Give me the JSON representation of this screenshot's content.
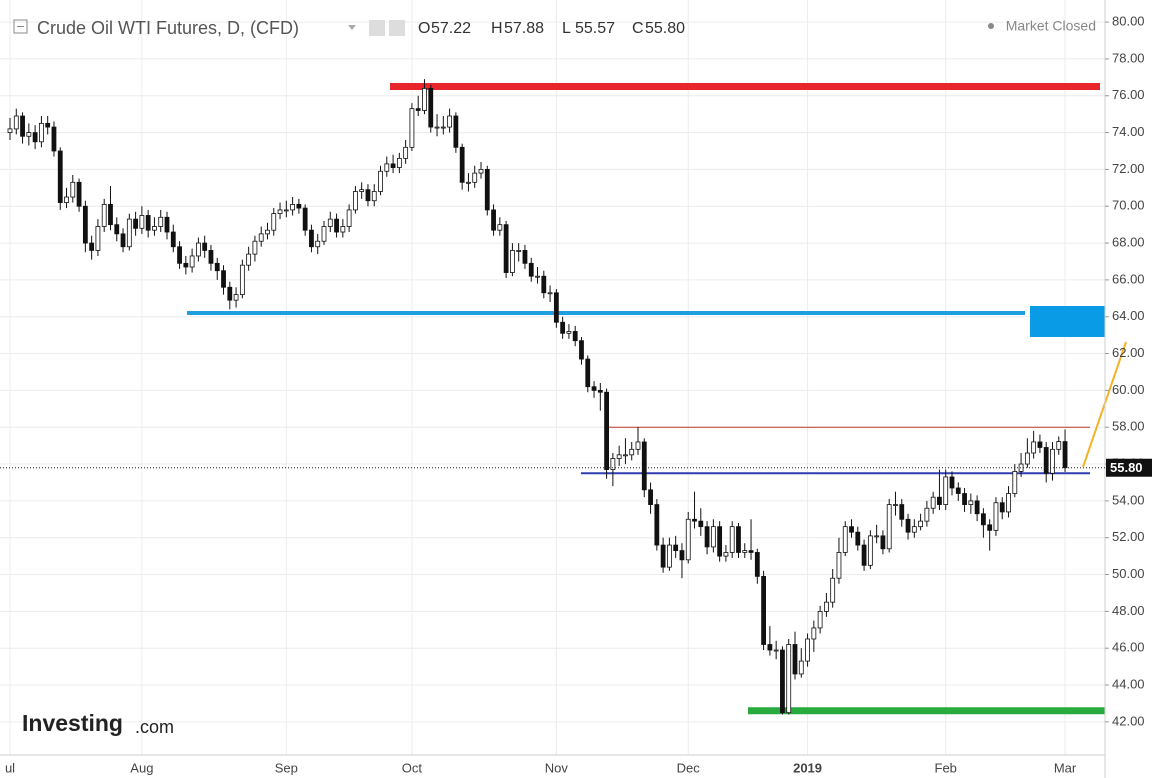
{
  "chart_data": {
    "type": "candlestick",
    "title": "Crude Oil WTI Futures, D, (CFD)",
    "ohlc_labels": [
      "O",
      "H",
      "L",
      "C"
    ],
    "ohlc_values": [
      "57.22",
      "57.88",
      "55.57",
      "55.80"
    ],
    "status": "Market Closed",
    "brand": "Investing",
    "brand_suffix": ".com",
    "up_color": "#ffffff",
    "down_color": "#111111",
    "grid": true,
    "ylim": [
      40.2,
      81.2
    ],
    "yticks": [
      {
        "value": 42,
        "label": "42.00"
      },
      {
        "value": 44,
        "label": "44.00"
      },
      {
        "value": 46,
        "label": "46.00"
      },
      {
        "value": 48,
        "label": "48.00"
      },
      {
        "value": 50,
        "label": "50.00"
      },
      {
        "value": 52,
        "label": "52.00"
      },
      {
        "value": 54,
        "label": "54.00"
      },
      {
        "value": 56,
        "label": "56.00"
      },
      {
        "value": 58,
        "label": "58.00"
      },
      {
        "value": 60,
        "label": "60.00"
      },
      {
        "value": 62,
        "label": "62.00"
      },
      {
        "value": 64,
        "label": "64.00"
      },
      {
        "value": 66,
        "label": "66.00"
      },
      {
        "value": 68,
        "label": "68.00"
      },
      {
        "value": 70,
        "label": "70.00"
      },
      {
        "value": 72,
        "label": "72.00"
      },
      {
        "value": 74,
        "label": "74.00"
      },
      {
        "value": 76,
        "label": "76.00"
      },
      {
        "value": 78,
        "label": "78.00"
      },
      {
        "value": 80,
        "label": "80.00"
      }
    ],
    "xticks": [
      {
        "value": 0,
        "label": "ul"
      },
      {
        "value": 21,
        "label": "Aug"
      },
      {
        "value": 44,
        "label": "Sep"
      },
      {
        "value": 64,
        "label": "Oct"
      },
      {
        "value": 87,
        "label": "Nov"
      },
      {
        "value": 108,
        "label": "Dec"
      },
      {
        "value": 127,
        "label": "2019"
      },
      {
        "value": 149,
        "label": "Feb"
      },
      {
        "value": 168,
        "label": "Mar"
      }
    ],
    "last_price": {
      "value": 55.8,
      "label": "55.80"
    },
    "levels": [
      {
        "value": 76.5,
        "color": "#e8262b"
      },
      {
        "value": 64.2,
        "color": "#1e9fe0"
      },
      {
        "value": 58.0,
        "color": "#c0392b"
      },
      {
        "value": 55.5,
        "color": "#2f3fb0"
      },
      {
        "value": 42.6,
        "color": "#27ab3f"
      }
    ],
    "open": [
      74.0,
      74.2,
      74.9,
      73.8,
      74.0,
      73.5,
      74.5,
      74.3,
      73.0,
      70.2,
      70.5,
      71.3,
      70.0,
      68.0,
      67.6,
      68.9,
      70.1,
      69.0,
      68.5,
      67.8,
      69.3,
      68.8,
      69.5,
      68.7,
      68.9,
      69.4,
      68.6,
      67.8,
      66.9,
      66.7,
      67.3,
      68.0,
      67.6,
      66.9,
      66.5,
      65.6,
      64.9,
      65.2,
      66.8,
      67.4,
      68.1,
      68.5,
      68.7,
      69.6,
      69.8,
      69.8,
      70.1,
      69.9,
      68.7,
      67.8,
      68.1,
      68.9,
      69.3,
      68.6,
      68.9,
      69.8,
      70.8,
      70.9,
      70.3,
      70.8,
      71.9,
      72.3,
      72.1,
      72.6,
      73.2,
      75.3,
      75.2,
      76.4,
      74.3,
      74.3,
      74.3,
      74.9,
      73.2,
      71.3,
      71.3,
      71.8,
      72.0,
      69.8,
      68.7,
      69.0,
      66.4,
      67.6,
      67.6,
      66.9,
      66.2,
      66.2,
      65.3,
      65.3,
      63.7,
      63.1,
      63.2,
      62.7,
      61.7,
      60.2,
      60.0,
      59.9,
      55.7,
      56.3,
      56.5,
      56.5,
      56.8,
      57.2,
      54.6,
      53.8,
      51.6,
      50.4,
      51.6,
      51.3,
      50.8,
      53.0,
      52.9,
      52.6,
      51.5,
      52.6,
      51.0,
      51.2,
      52.6,
      51.2,
      51.3,
      51.2,
      49.9,
      46.2,
      45.9,
      45.9,
      42.5,
      46.2,
      44.6,
      45.3,
      46.5,
      47.1,
      48.0,
      48.5,
      49.8,
      51.2,
      52.6,
      52.3,
      51.6,
      50.5,
      52.1,
      52.1,
      51.4,
      53.8,
      53.8,
      53.0,
      52.3,
      52.6,
      52.9,
      53.6,
      54.2,
      53.8,
      55.3,
      54.7,
      54.4,
      53.8,
      54.0,
      53.3,
      52.7,
      52.4,
      53.9,
      53.4,
      54.4,
      55.6,
      56.0,
      56.6,
      57.2,
      56.9,
      55.5,
      56.8,
      57.22
    ],
    "high": [
      74.8,
      75.3,
      75.1,
      74.5,
      74.4,
      74.9,
      74.9,
      74.6,
      73.2,
      71.0,
      71.7,
      71.5,
      70.3,
      68.4,
      69.3,
      70.4,
      71.1,
      69.4,
      68.8,
      69.6,
      69.7,
      70.0,
      69.8,
      69.4,
      69.8,
      69.7,
      69.0,
      68.1,
      67.3,
      67.7,
      68.3,
      68.4,
      67.9,
      67.2,
      66.8,
      65.9,
      65.6,
      67.1,
      67.8,
      68.4,
      68.9,
      69.1,
      69.9,
      70.2,
      70.3,
      70.5,
      70.4,
      70.1,
      69.0,
      68.5,
      69.2,
      69.7,
      69.6,
      69.3,
      70.1,
      71.1,
      71.3,
      71.2,
      71.2,
      72.2,
      72.7,
      72.8,
      72.9,
      73.6,
      75.6,
      76.0,
      76.9,
      76.6,
      75.0,
      74.9,
      75.3,
      75.1,
      73.4,
      71.8,
      72.2,
      72.4,
      72.2,
      70.1,
      69.4,
      69.2,
      68.0,
      68.0,
      67.9,
      67.2,
      66.7,
      66.5,
      65.7,
      65.5,
      64.0,
      63.6,
      63.5,
      62.9,
      61.9,
      60.5,
      60.4,
      60.1,
      56.6,
      57.0,
      57.4,
      57.2,
      58.0,
      57.4,
      55.0,
      54.1,
      52.0,
      52.0,
      52.1,
      51.7,
      53.4,
      54.5,
      53.6,
      52.9,
      53.0,
      52.9,
      51.6,
      52.9,
      52.8,
      51.7,
      53.0,
      51.4,
      50.2,
      47.2,
      46.4,
      46.1,
      46.5,
      46.9,
      46.0,
      46.8,
      47.5,
      48.3,
      49.0,
      50.3,
      52.0,
      52.9,
      53.0,
      52.6,
      51.9,
      52.4,
      52.7,
      52.4,
      54.1,
      54.5,
      54.1,
      53.3,
      53.0,
      53.3,
      54.0,
      54.5,
      55.7,
      55.7,
      55.6,
      55.0,
      54.7,
      54.4,
      54.3,
      53.6,
      53.0,
      54.2,
      54.2,
      54.8,
      56.0,
      56.6,
      57.4,
      57.8,
      57.6,
      57.2,
      57.2,
      57.5,
      57.88
    ],
    "low": [
      73.6,
      73.9,
      73.4,
      73.3,
      73.1,
      73.2,
      73.9,
      72.7,
      69.8,
      69.9,
      70.2,
      69.7,
      67.5,
      67.1,
      67.3,
      68.6,
      68.7,
      68.1,
      67.5,
      67.6,
      68.4,
      68.5,
      68.3,
      68.4,
      68.6,
      68.2,
      67.5,
      66.6,
      66.3,
      66.4,
      67.0,
      67.2,
      66.5,
      66.0,
      65.2,
      64.4,
      64.5,
      65.0,
      66.5,
      67.0,
      67.8,
      68.2,
      68.4,
      69.3,
      69.4,
      69.5,
      69.6,
      68.4,
      67.5,
      67.4,
      67.9,
      68.6,
      68.3,
      68.3,
      68.6,
      69.6,
      70.4,
      70.0,
      70.0,
      70.6,
      71.6,
      71.8,
      71.8,
      72.3,
      73.0,
      74.9,
      75.0,
      74.0,
      73.8,
      73.9,
      74.0,
      72.9,
      70.9,
      70.8,
      71.0,
      71.5,
      69.5,
      68.4,
      68.4,
      66.1,
      66.2,
      67.0,
      66.6,
      65.9,
      65.8,
      65.0,
      64.8,
      63.4,
      62.8,
      62.8,
      62.4,
      61.4,
      59.9,
      59.6,
      58.9,
      55.2,
      54.8,
      55.9,
      56.0,
      56.2,
      56.5,
      54.2,
      53.3,
      51.3,
      50.1,
      50.2,
      50.9,
      49.8,
      50.6,
      52.5,
      52.1,
      51.1,
      51.2,
      50.7,
      50.7,
      50.9,
      50.9,
      50.9,
      50.8,
      49.5,
      45.9,
      45.6,
      45.4,
      42.4,
      42.4,
      44.3,
      44.4,
      45.0,
      45.8,
      46.8,
      47.7,
      48.2,
      49.5,
      51.0,
      52.0,
      51.3,
      50.2,
      50.3,
      51.7,
      51.1,
      51.2,
      53.2,
      52.6,
      51.9,
      52.0,
      52.4,
      52.6,
      53.3,
      53.5,
      53.5,
      54.3,
      54.0,
      53.4,
      53.3,
      52.9,
      52.0,
      51.3,
      52.1,
      53.0,
      53.1,
      54.2,
      55.3,
      55.8,
      56.3,
      56.6,
      55.0,
      55.1,
      56.5,
      55.57
    ],
    "close": [
      74.2,
      74.9,
      73.8,
      74.0,
      73.5,
      74.5,
      74.3,
      73.0,
      70.2,
      70.5,
      71.3,
      70.0,
      68.0,
      67.6,
      68.9,
      70.1,
      69.0,
      68.5,
      67.8,
      69.3,
      68.8,
      69.5,
      68.7,
      68.9,
      69.4,
      68.6,
      67.8,
      66.9,
      66.7,
      67.3,
      68.0,
      67.6,
      66.9,
      66.5,
      65.6,
      64.9,
      65.2,
      66.8,
      67.4,
      68.1,
      68.5,
      68.7,
      69.6,
      69.8,
      69.8,
      70.1,
      69.9,
      68.7,
      67.8,
      68.1,
      68.9,
      69.3,
      68.6,
      68.9,
      69.8,
      70.8,
      70.9,
      70.3,
      70.8,
      71.9,
      72.3,
      72.1,
      72.6,
      73.2,
      75.3,
      75.2,
      76.4,
      74.3,
      74.3,
      74.3,
      74.9,
      73.2,
      71.3,
      71.3,
      71.8,
      72.0,
      69.8,
      68.7,
      69.0,
      66.4,
      67.6,
      67.6,
      66.9,
      66.2,
      66.2,
      65.3,
      65.3,
      63.7,
      63.1,
      63.2,
      62.7,
      61.7,
      60.2,
      60.0,
      59.9,
      55.7,
      56.3,
      56.5,
      56.5,
      56.8,
      57.2,
      54.6,
      53.8,
      51.6,
      50.4,
      51.6,
      51.3,
      50.8,
      53.0,
      52.9,
      52.6,
      51.5,
      52.6,
      51.0,
      51.2,
      52.6,
      51.2,
      51.3,
      51.2,
      49.9,
      46.2,
      45.9,
      45.9,
      42.5,
      46.2,
      44.6,
      45.3,
      46.5,
      47.1,
      48.0,
      48.5,
      49.8,
      51.2,
      52.6,
      52.3,
      51.6,
      50.5,
      52.1,
      52.1,
      51.4,
      53.8,
      53.8,
      53.0,
      52.3,
      52.6,
      52.9,
      53.6,
      54.2,
      53.8,
      55.3,
      54.7,
      54.4,
      53.8,
      54.0,
      53.3,
      52.7,
      52.4,
      53.9,
      53.4,
      54.4,
      55.6,
      56.0,
      56.6,
      57.2,
      56.9,
      55.5,
      56.8,
      57.22,
      55.8
    ]
  }
}
